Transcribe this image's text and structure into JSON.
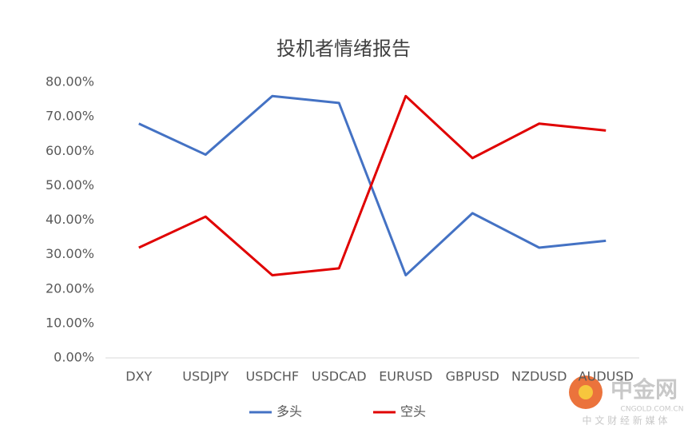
{
  "chart_data": {
    "type": "line",
    "title": "投机者情绪报告",
    "categories": [
      "DXY",
      "USDJPY",
      "USDCHF",
      "USDCAD",
      "EURUSD",
      "GBPUSD",
      "NZDUSD",
      "AUDUSD"
    ],
    "series": [
      {
        "name": "多头",
        "color": "#4472c4",
        "values": [
          68,
          59,
          76,
          74,
          24,
          42,
          32,
          34
        ]
      },
      {
        "name": "空头",
        "color": "#e00000",
        "values": [
          32,
          41,
          24,
          26,
          76,
          58,
          68,
          66
        ]
      }
    ],
    "ylim": [
      0,
      80
    ],
    "yticks": [
      {
        "value": 0,
        "label": "0.00%"
      },
      {
        "value": 10,
        "label": "10.00%"
      },
      {
        "value": 20,
        "label": "20.00%"
      },
      {
        "value": 30,
        "label": "30.00%"
      },
      {
        "value": 40,
        "label": "40.00%"
      },
      {
        "value": 50,
        "label": "50.00%"
      },
      {
        "value": 60,
        "label": "60.00%"
      },
      {
        "value": 70,
        "label": "70.00%"
      },
      {
        "value": 80,
        "label": "80.00%"
      }
    ],
    "grid": false,
    "legend": "bottom"
  },
  "watermark": {
    "brand": "中金网",
    "domain": "CNGOLD.COM.CN",
    "slogan": "中 文 财 经 新 媒 体"
  }
}
